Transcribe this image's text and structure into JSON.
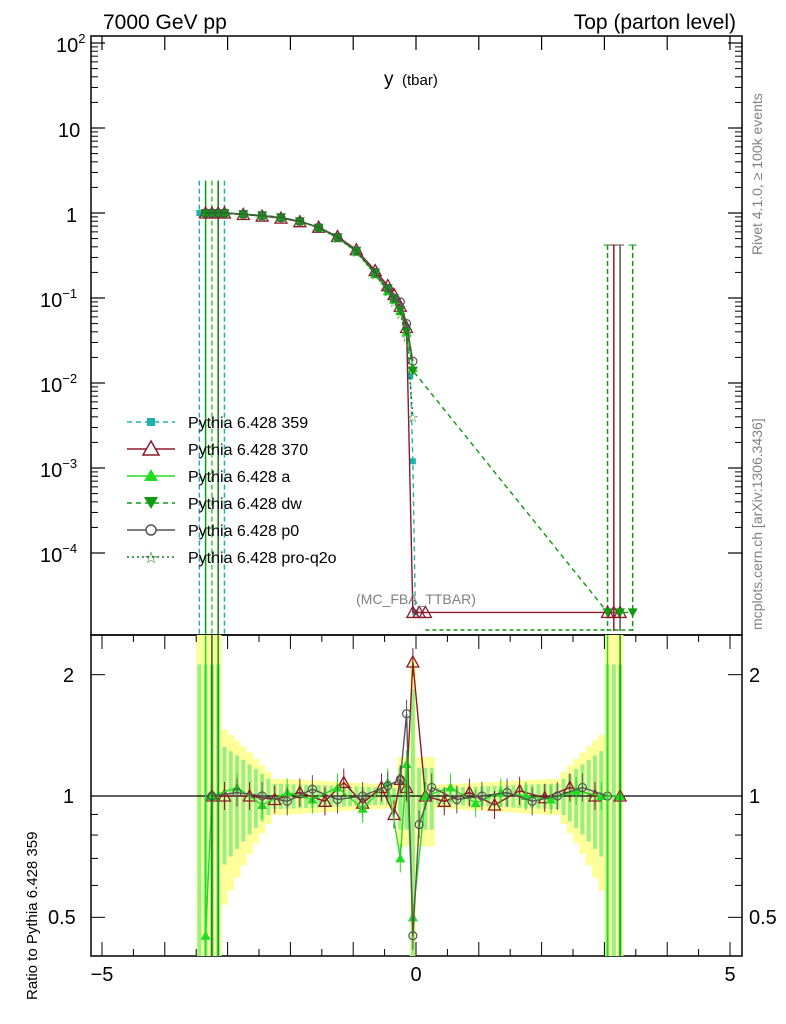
{
  "header": {
    "left": "7000 GeV pp",
    "right": "Top (parton level)"
  },
  "plot_title": "y",
  "plot_title_sub": "(tbar)",
  "side_label_top": "Rivet 4.1.0, ≥ 100k events",
  "side_label_bottom": "mcplots.cern.ch [arXiv:1306.3436]",
  "analysis_label": "(MC_FBA_TTBAR)",
  "ratio_ylabel": "Ratio to Pythia 6.428 359",
  "colors": {
    "s359": "#20b2aa",
    "s370": "#8b1a2b",
    "a": "#22dd22",
    "dw": "#119911",
    "p0": "#555555",
    "proq2o": "#117711",
    "band_yellow": "#ffff99",
    "band_green": "#99ee88"
  },
  "chart_data": [
    {
      "type": "line",
      "panel": "main",
      "xlim": [
        -5.2,
        5.2
      ],
      "ylim": [
        1e-05,
        150
      ],
      "log_y": true,
      "y_ticks": [
        "10^2",
        "10",
        "1",
        "10^-1",
        "10^-2",
        "10^-3",
        "10^-4"
      ],
      "legend_position": "left-middle",
      "series": [
        {
          "name": "Pythia 6.428 359",
          "key": "s359",
          "marker": "filled-square",
          "dash": "dashed",
          "x": [
            -3.45,
            -3.35,
            -3.25,
            -3.15,
            -3.05,
            -2.75,
            -2.45,
            -2.15,
            -1.85,
            -1.55,
            -1.25,
            -0.95,
            -0.65,
            -0.45,
            -0.35,
            -0.25,
            -0.15,
            -0.09,
            -0.05,
            -0.01
          ],
          "y": [
            1.0,
            1.0,
            1.0,
            1.0,
            0.98,
            0.96,
            0.93,
            0.88,
            0.8,
            0.68,
            0.52,
            0.36,
            0.2,
            0.13,
            0.1,
            0.075,
            0.045,
            0.012,
            0.0012,
            2e-05
          ]
        },
        {
          "name": "Pythia 6.428 370",
          "key": "s370",
          "marker": "open-triangle",
          "dash": "solid",
          "x": [
            -3.35,
            -3.25,
            -3.15,
            -3.05,
            -2.75,
            -2.45,
            -2.15,
            -1.85,
            -1.55,
            -1.25,
            -0.95,
            -0.65,
            -0.45,
            -0.35,
            -0.25,
            -0.15,
            -0.05,
            0.05,
            0.15,
            3.05,
            3.15,
            3.25
          ],
          "y": [
            1.0,
            1.0,
            1.0,
            1.0,
            0.96,
            0.92,
            0.87,
            0.79,
            0.68,
            0.53,
            0.37,
            0.21,
            0.14,
            0.11,
            0.08,
            0.045,
            2e-05,
            2e-05,
            2e-05,
            2e-05,
            2e-05,
            2e-05
          ]
        },
        {
          "name": "Pythia 6.428 a",
          "key": "a",
          "marker": "filled-triangle",
          "dash": "solid",
          "x": [
            -3.35,
            -3.25,
            -3.15,
            -3.05,
            -2.75,
            -2.45,
            -2.15,
            -1.85,
            -1.55,
            -1.25,
            -0.95,
            -0.65,
            -0.45,
            -0.35,
            -0.25,
            -0.15,
            -0.05
          ],
          "y": [
            1.0,
            1.0,
            1.0,
            1.0,
            0.97,
            0.93,
            0.88,
            0.8,
            0.67,
            0.51,
            0.35,
            0.19,
            0.12,
            0.095,
            0.07,
            0.04,
            0.015
          ]
        },
        {
          "name": "Pythia 6.428 dw",
          "key": "dw",
          "marker": "filled-triangle-down",
          "dash": "dashed",
          "x": [
            -3.35,
            -3.25,
            -3.15,
            -3.05,
            -2.75,
            -2.45,
            -2.15,
            -1.85,
            -1.55,
            -1.25,
            -0.95,
            -0.65,
            -0.45,
            -0.35,
            -0.25,
            -0.15,
            -0.05,
            3.05,
            3.25,
            3.45
          ],
          "y": [
            1.0,
            1.0,
            1.0,
            1.0,
            0.97,
            0.94,
            0.89,
            0.8,
            0.67,
            0.52,
            0.36,
            0.2,
            0.13,
            0.1,
            0.072,
            0.04,
            0.014,
            2e-05,
            2e-05,
            2e-05
          ]
        },
        {
          "name": "Pythia 6.428 p0",
          "key": "p0",
          "marker": "open-circle",
          "dash": "solid",
          "x": [
            -3.35,
            -3.25,
            -3.15,
            -3.05,
            -2.75,
            -2.45,
            -2.15,
            -1.85,
            -1.55,
            -1.25,
            -0.95,
            -0.65,
            -0.45,
            -0.35,
            -0.25,
            -0.15,
            -0.05
          ],
          "y": [
            1.0,
            1.0,
            1.0,
            1.0,
            0.97,
            0.93,
            0.88,
            0.8,
            0.68,
            0.52,
            0.36,
            0.2,
            0.13,
            0.1,
            0.09,
            0.05,
            0.018
          ]
        },
        {
          "name": "Pythia 6.428 pro-q2o",
          "key": "proq2o",
          "marker": "open-star",
          "dash": "dotted",
          "x": [
            -3.35,
            -3.25,
            -3.15,
            -3.05,
            -2.75,
            -2.45,
            -2.15,
            -1.85,
            -1.55,
            -1.25,
            -0.95,
            -0.65,
            -0.45,
            -0.35,
            -0.25,
            -0.15,
            -0.05
          ],
          "y": [
            1.0,
            1.0,
            1.0,
            1.0,
            0.96,
            0.92,
            0.88,
            0.8,
            0.67,
            0.51,
            0.35,
            0.19,
            0.12,
            0.09,
            0.065,
            0.035,
            0.004
          ]
        }
      ]
    },
    {
      "type": "line",
      "panel": "ratio",
      "xlim": [
        -5.2,
        5.2
      ],
      "ylim": [
        0.4,
        2.4
      ],
      "log_y": true,
      "x_ticks": [
        -5,
        0,
        5
      ],
      "y_ticks": [
        0.5,
        1,
        2
      ],
      "series": [
        {
          "name": "Pythia 6.428 370",
          "key": "s370",
          "x": [
            -3.25,
            -3.05,
            -2.65,
            -2.25,
            -1.85,
            -1.45,
            -1.15,
            -0.85,
            -0.55,
            -0.35,
            -0.25,
            -0.15,
            -0.05,
            0.15,
            0.45,
            0.85,
            1.25,
            1.65,
            2.05,
            2.45,
            2.85,
            3.25
          ],
          "y": [
            1.0,
            1.0,
            1.0,
            0.98,
            1.02,
            0.97,
            1.08,
            0.96,
            1.05,
            0.9,
            1.1,
            1.05,
            2.15,
            1.0,
            0.97,
            1.02,
            0.95,
            1.03,
            0.99,
            1.05,
            1.0,
            1.0
          ]
        },
        {
          "name": "Pythia 6.428 a",
          "key": "a",
          "x": [
            -3.35,
            -3.25,
            -2.85,
            -2.45,
            -2.05,
            -1.65,
            -1.25,
            -0.85,
            -0.45,
            -0.25,
            -0.15,
            -0.05,
            0.15,
            0.55,
            0.95,
            1.35,
            1.75,
            2.15,
            2.55,
            2.95,
            3.25
          ],
          "y": [
            0.45,
            1.0,
            1.05,
            0.95,
            1.02,
            0.98,
            1.05,
            0.93,
            1.08,
            0.7,
            1.2,
            0.5,
            1.0,
            1.05,
            0.96,
            1.02,
            1.0,
            0.98,
            1.03,
            1.0,
            1.0
          ]
        },
        {
          "name": "Pythia 6.428 p0",
          "key": "p0",
          "x": [
            -3.25,
            -2.85,
            -2.45,
            -2.05,
            -1.65,
            -1.25,
            -0.85,
            -0.45,
            -0.25,
            -0.15,
            -0.05,
            0.05,
            0.25,
            0.65,
            1.05,
            1.45,
            1.85,
            2.25,
            2.65,
            3.05
          ],
          "y": [
            1.0,
            1.02,
            1.0,
            0.97,
            1.04,
            0.98,
            1.0,
            1.06,
            1.1,
            1.6,
            0.45,
            0.85,
            1.05,
            0.98,
            1.0,
            1.02,
            0.97,
            1.0,
            1.05,
            1.0
          ]
        }
      ]
    }
  ]
}
